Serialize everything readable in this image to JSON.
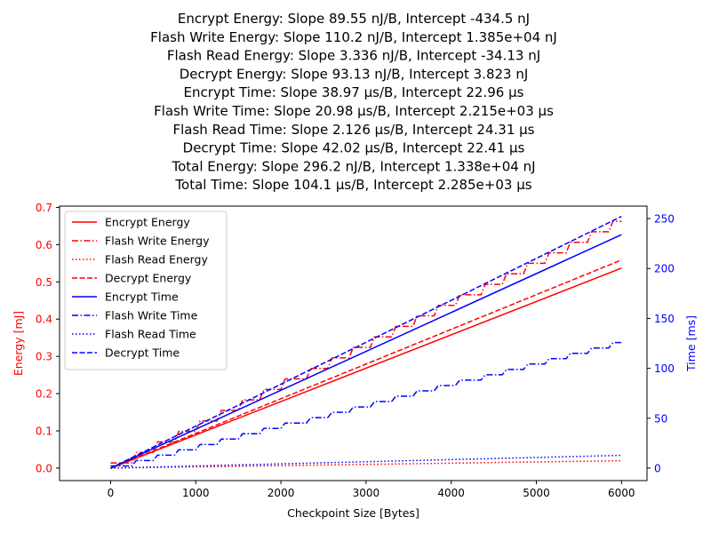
{
  "chart_data": {
    "type": "line",
    "title_lines": [
      "Encrypt Energy: Slope 89.55 nJ/B, Intercept -434.5 nJ",
      "Flash Write Energy: Slope 110.2 nJ/B, Intercept 1.385e+04 nJ",
      "Flash Read Energy: Slope 3.336 nJ/B, Intercept -34.13 nJ",
      "Decrypt Energy: Slope 93.13 nJ/B, Intercept 3.823 nJ",
      "Encrypt Time: Slope 38.97 μs/B, Intercept 22.96 μs",
      "Flash Write Time: Slope 20.98 μs/B, Intercept 2.215e+03 μs",
      "Flash Read Time: Slope 2.126 μs/B, Intercept 24.31 μs",
      "Decrypt Time: Slope 42.02 μs/B, Intercept 22.41 μs",
      "Total Energy: Slope 296.2 nJ/B, Intercept 1.338e+04 nJ",
      "Total Time: Slope 104.1 μs/B, Intercept 2.285e+03 μs"
    ],
    "xlabel": "Checkpoint Size [Bytes]",
    "ylabel_left": "Energy [mJ]",
    "ylabel_right": "Time [ms]",
    "xlim": [
      -600,
      6300
    ],
    "ylim_left": [
      -0.0335,
      0.7035
    ],
    "ylim_right": [
      -12.5,
      262.5
    ],
    "x_ticks": [
      0,
      1000,
      2000,
      3000,
      4000,
      5000,
      6000
    ],
    "y_ticks_left": [
      0.0,
      0.1,
      0.2,
      0.3,
      0.4,
      0.5,
      0.6,
      0.7
    ],
    "y_ticks_right": [
      0,
      50,
      100,
      150,
      200,
      250
    ],
    "left_axis_color": "#ff0000",
    "right_axis_color": "#0000ff",
    "legend_position": "upper-left",
    "grid": false,
    "x_range": [
      0,
      6000
    ],
    "series": [
      {
        "name": "Encrypt Energy",
        "axis": "left",
        "color": "#ff0000",
        "style": "solid",
        "shape": "linear",
        "slope": 8.955e-05,
        "intercept": -0.0004345
      },
      {
        "name": "Flash Write Energy",
        "axis": "left",
        "color": "#ff0000",
        "style": "dashdot",
        "shape": "step",
        "step": 256,
        "slope": 0.0001102,
        "intercept": 0.01385
      },
      {
        "name": "Flash Read Energy",
        "axis": "left",
        "color": "#ff0000",
        "style": "dotted",
        "shape": "linear",
        "slope": 3.336e-06,
        "intercept": -3.413e-05
      },
      {
        "name": "Decrypt Energy",
        "axis": "left",
        "color": "#ff0000",
        "style": "dashed",
        "shape": "linear",
        "slope": 9.313e-05,
        "intercept": 3.823e-06
      },
      {
        "name": "Encrypt Time",
        "axis": "right",
        "color": "#0000ff",
        "style": "solid",
        "shape": "linear",
        "slope": 0.03897,
        "intercept": 0.02296
      },
      {
        "name": "Flash Write Time",
        "axis": "right",
        "color": "#0000ff",
        "style": "dashdot",
        "shape": "step",
        "step": 256,
        "slope": 0.02098,
        "intercept": 2.215
      },
      {
        "name": "Flash Read Time",
        "axis": "right",
        "color": "#0000ff",
        "style": "dotted",
        "shape": "linear",
        "slope": 0.002126,
        "intercept": 0.02431
      },
      {
        "name": "Decrypt Time",
        "axis": "right",
        "color": "#0000ff",
        "style": "dashed",
        "shape": "linear",
        "slope": 0.04202,
        "intercept": 0.02241
      }
    ]
  }
}
